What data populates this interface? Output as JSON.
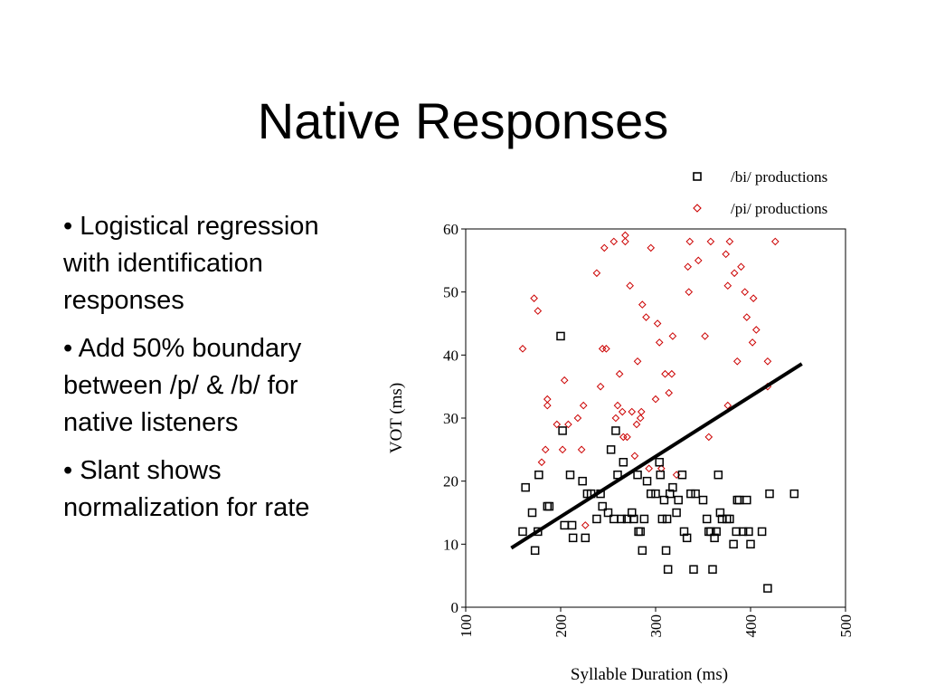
{
  "slide": {
    "title": "Native Responses",
    "bullets": [
      "• Logistical regression with identification responses",
      "• Add 50% boundary between /p/ & /b/ for native listeners",
      "• Slant shows normalization for rate"
    ]
  },
  "colors": {
    "bi": "#000000",
    "pi": "#cc0000",
    "line": "#000000"
  },
  "chart_data": {
    "type": "scatter",
    "xlabel": "Syllable Duration (ms)",
    "ylabel": "VOT (ms)",
    "xlim": [
      100,
      500
    ],
    "ylim": [
      0,
      60
    ],
    "xticks": [
      "100",
      "200",
      "300",
      "400",
      "500"
    ],
    "yticks": [
      "0",
      "10",
      "20",
      "30",
      "40",
      "50",
      "60"
    ],
    "grid": false,
    "legend_position": "top-right",
    "series": [
      {
        "name": "/bi/ productions",
        "marker": "square",
        "points": [
          [
            160,
            12
          ],
          [
            163,
            19
          ],
          [
            170,
            15
          ],
          [
            173,
            9
          ],
          [
            176,
            12
          ],
          [
            177,
            21
          ],
          [
            186,
            16
          ],
          [
            188,
            16
          ],
          [
            200,
            43
          ],
          [
            202,
            28
          ],
          [
            204,
            13
          ],
          [
            210,
            21
          ],
          [
            212,
            13
          ],
          [
            213,
            11
          ],
          [
            223,
            20
          ],
          [
            226,
            11
          ],
          [
            228,
            18
          ],
          [
            232,
            18
          ],
          [
            238,
            14
          ],
          [
            242,
            18
          ],
          [
            244,
            16
          ],
          [
            250,
            15
          ],
          [
            253,
            25
          ],
          [
            256,
            14
          ],
          [
            258,
            28
          ],
          [
            260,
            21
          ],
          [
            264,
            14
          ],
          [
            266,
            23
          ],
          [
            270,
            14
          ],
          [
            275,
            15
          ],
          [
            277,
            14
          ],
          [
            281,
            21
          ],
          [
            282,
            12
          ],
          [
            284,
            12
          ],
          [
            286,
            9
          ],
          [
            288,
            14
          ],
          [
            291,
            20
          ],
          [
            295,
            18
          ],
          [
            300,
            18
          ],
          [
            304,
            23
          ],
          [
            305,
            21
          ],
          [
            307,
            14
          ],
          [
            309,
            17
          ],
          [
            311,
            9
          ],
          [
            312,
            14
          ],
          [
            313,
            6
          ],
          [
            315,
            18
          ],
          [
            318,
            19
          ],
          [
            322,
            15
          ],
          [
            324,
            17
          ],
          [
            328,
            21
          ],
          [
            330,
            12
          ],
          [
            333,
            11
          ],
          [
            337,
            18
          ],
          [
            340,
            6
          ],
          [
            342,
            18
          ],
          [
            350,
            17
          ],
          [
            354,
            14
          ],
          [
            356,
            12
          ],
          [
            358,
            12
          ],
          [
            360,
            6
          ],
          [
            362,
            11
          ],
          [
            364,
            12
          ],
          [
            366,
            21
          ],
          [
            368,
            15
          ],
          [
            370,
            14
          ],
          [
            375,
            14
          ],
          [
            378,
            14
          ],
          [
            382,
            10
          ],
          [
            385,
            12
          ],
          [
            386,
            17
          ],
          [
            388,
            17
          ],
          [
            392,
            12
          ],
          [
            396,
            17
          ],
          [
            398,
            12
          ],
          [
            400,
            10
          ],
          [
            412,
            12
          ],
          [
            418,
            3
          ],
          [
            420,
            18
          ],
          [
            446,
            18
          ]
        ]
      },
      {
        "name": "/pi/ productions",
        "marker": "diamond",
        "points": [
          [
            160,
            41
          ],
          [
            172,
            49
          ],
          [
            176,
            47
          ],
          [
            180,
            23
          ],
          [
            184,
            25
          ],
          [
            186,
            33
          ],
          [
            186,
            32
          ],
          [
            196,
            29
          ],
          [
            202,
            25
          ],
          [
            204,
            36
          ],
          [
            208,
            29
          ],
          [
            218,
            30
          ],
          [
            222,
            25
          ],
          [
            224,
            32
          ],
          [
            226,
            13
          ],
          [
            238,
            53
          ],
          [
            242,
            35
          ],
          [
            244,
            41
          ],
          [
            246,
            57
          ],
          [
            248,
            41
          ],
          [
            256,
            58
          ],
          [
            258,
            30
          ],
          [
            260,
            32
          ],
          [
            262,
            37
          ],
          [
            265,
            31
          ],
          [
            266,
            27
          ],
          [
            268,
            58
          ],
          [
            268,
            59
          ],
          [
            270,
            27
          ],
          [
            273,
            51
          ],
          [
            275,
            31
          ],
          [
            278,
            24
          ],
          [
            280,
            29
          ],
          [
            281,
            39
          ],
          [
            284,
            30
          ],
          [
            285,
            31
          ],
          [
            286,
            48
          ],
          [
            290,
            46
          ],
          [
            293,
            22
          ],
          [
            295,
            57
          ],
          [
            300,
            33
          ],
          [
            302,
            45
          ],
          [
            304,
            42
          ],
          [
            306,
            22
          ],
          [
            310,
            37
          ],
          [
            314,
            34
          ],
          [
            317,
            37
          ],
          [
            318,
            43
          ],
          [
            322,
            21
          ],
          [
            334,
            54
          ],
          [
            335,
            50
          ],
          [
            336,
            58
          ],
          [
            345,
            55
          ],
          [
            352,
            43
          ],
          [
            356,
            27
          ],
          [
            358,
            58
          ],
          [
            374,
            56
          ],
          [
            376,
            32
          ],
          [
            376,
            51
          ],
          [
            378,
            58
          ],
          [
            383,
            53
          ],
          [
            386,
            39
          ],
          [
            390,
            54
          ],
          [
            394,
            50
          ],
          [
            396,
            46
          ],
          [
            402,
            42
          ],
          [
            403,
            49
          ],
          [
            406,
            44
          ],
          [
            418,
            39
          ],
          [
            418,
            35
          ],
          [
            426,
            58
          ]
        ]
      }
    ],
    "boundary_line": {
      "x": [
        148,
        454
      ],
      "y": [
        9.4,
        38.6
      ]
    }
  }
}
